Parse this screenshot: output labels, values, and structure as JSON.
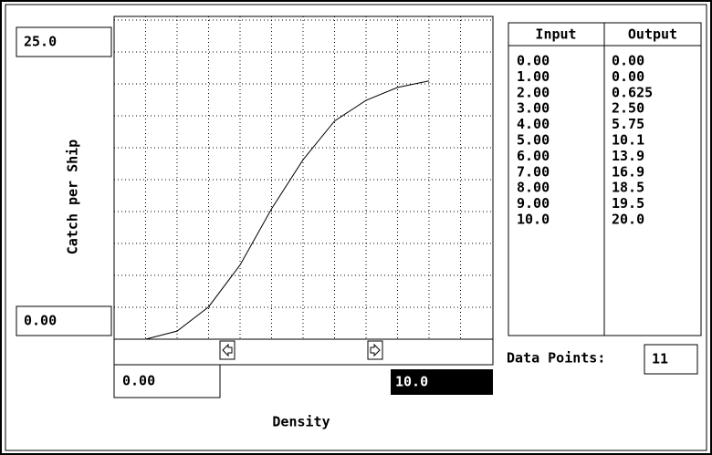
{
  "graph": {
    "y_axis_label": "Catch per Ship",
    "ymax": "25.0",
    "ymin": "0.00",
    "xmin": "0.00",
    "xmax": "10.0",
    "x_axis_label": "Density"
  },
  "table": {
    "headers": [
      "Input",
      "Output"
    ],
    "rows": [
      [
        "0.00",
        "0.00"
      ],
      [
        "1.00",
        "0.00"
      ],
      [
        "2.00",
        "0.625"
      ],
      [
        "3.00",
        "2.50"
      ],
      [
        "4.00",
        "5.75"
      ],
      [
        "5.00",
        "10.1"
      ],
      [
        "6.00",
        "13.9"
      ],
      [
        "7.00",
        "16.9"
      ],
      [
        "8.00",
        "18.5"
      ],
      [
        "9.00",
        "19.5"
      ],
      [
        "10.0",
        "20.0"
      ]
    ]
  },
  "data_points_label": "Data Points:",
  "data_points": "11"
}
